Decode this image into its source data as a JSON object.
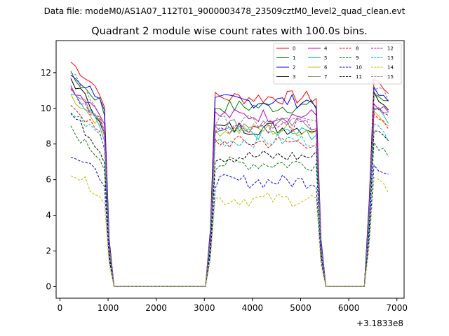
{
  "chart_data": {
    "type": "line",
    "suptitle": "Data file: modeM0/AS1A07_112T01_9000003478_23509cztM0_level2_quad_clean.evt",
    "title": "Quadrant 2 module wise count rates with 100.0s bins.",
    "xlabel": "",
    "ylabel": "",
    "x_offset_label": "+3.1833e8",
    "x_ticks": [
      0,
      1000,
      2000,
      3000,
      4000,
      5000,
      6000,
      7000
    ],
    "y_ticks": [
      0,
      2,
      4,
      6,
      8,
      10,
      12
    ],
    "xlim": [
      -80,
      7150
    ],
    "ylim": [
      -0.65,
      13.8
    ],
    "grid": false,
    "legend_position": "top-right",
    "x": [
      224,
      324,
      424,
      524,
      624,
      724,
      824,
      924,
      1024,
      1124,
      1224,
      1324,
      1424,
      1524,
      1624,
      1724,
      1824,
      1924,
      2024,
      2124,
      2224,
      2324,
      2424,
      2524,
      2624,
      2724,
      2824,
      2924,
      3024,
      3124,
      3224,
      3324,
      3424,
      3524,
      3624,
      3724,
      3824,
      3924,
      4024,
      4124,
      4224,
      4324,
      4424,
      4524,
      4624,
      4724,
      4824,
      4924,
      5024,
      5124,
      5224,
      5324,
      5424,
      5524,
      5624,
      5724,
      5824,
      5924,
      6024,
      6124,
      6224,
      6324,
      6424,
      6524,
      6624,
      6724,
      6824
    ],
    "series": [
      {
        "name": "0",
        "color": "#ff0000",
        "dash": "solid",
        "base": 10.6,
        "start": 12.6
      },
      {
        "name": "1",
        "color": "#008000",
        "dash": "solid",
        "base": 10.1,
        "start": 11.8
      },
      {
        "name": "2",
        "color": "#0000ff",
        "dash": "solid",
        "base": 10.4,
        "start": 11.9
      },
      {
        "name": "3",
        "color": "#000000",
        "dash": "solid",
        "base": 8.9,
        "start": 11.7
      },
      {
        "name": "4",
        "color": "#c000c0",
        "dash": "solid",
        "base": 9.6,
        "start": 11.2
      },
      {
        "name": "5",
        "color": "#00bfbf",
        "dash": "solid",
        "base": 8.6,
        "start": 10.8
      },
      {
        "name": "6",
        "color": "#bfbf00",
        "dash": "solid",
        "base": 8.8,
        "start": 10.7
      },
      {
        "name": "7",
        "color": "#808080",
        "dash": "solid",
        "base": 9.1,
        "start": 11.0
      },
      {
        "name": "8",
        "color": "#ff0000",
        "dash": "dashed",
        "base": 8.1,
        "start": 10.3
      },
      {
        "name": "9",
        "color": "#008000",
        "dash": "dashed",
        "base": 6.9,
        "start": 8.8
      },
      {
        "name": "10",
        "color": "#0000ff",
        "dash": "dashed",
        "base": 5.9,
        "start": 7.5
      },
      {
        "name": "11",
        "color": "#000000",
        "dash": "dashed",
        "base": 7.3,
        "start": 9.7
      },
      {
        "name": "12",
        "color": "#c000c0",
        "dash": "dashed",
        "base": 9.0,
        "start": 10.9
      },
      {
        "name": "13",
        "color": "#00bfbf",
        "dash": "dashed",
        "base": 8.2,
        "start": 9.8
      },
      {
        "name": "14",
        "color": "#bfbf00",
        "dash": "dashed",
        "base": 4.9,
        "start": 6.5
      },
      {
        "name": "15",
        "color": "#808080",
        "dash": "dashed",
        "base": 9.2,
        "start": 12.2
      }
    ]
  }
}
